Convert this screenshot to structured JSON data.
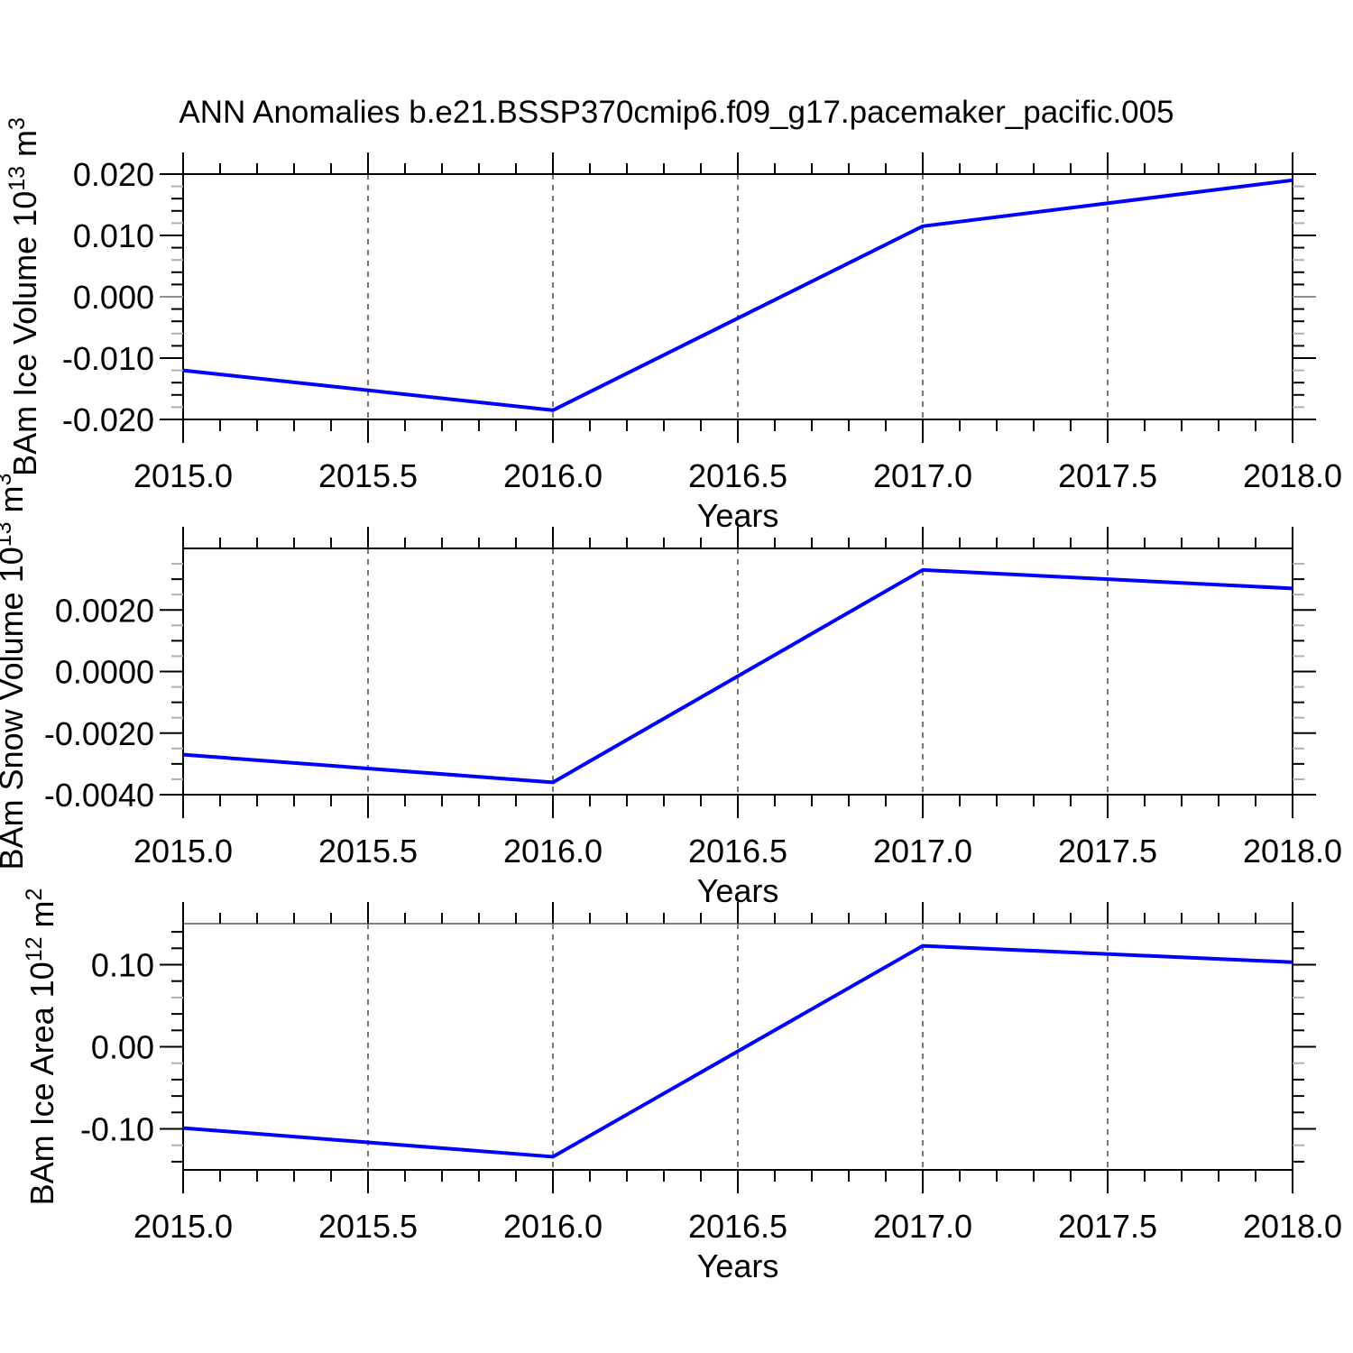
{
  "page": {
    "title": "ANN Anomalies b.e21.BSSP370cmip6.f09_g17.pacemaker_pacific.005"
  },
  "style": {
    "background": "#ffffff",
    "axis_color": "#000000",
    "text_color": "#000000",
    "line_color": "#0000ff",
    "grid_color": "#777777",
    "gray_tick_color": "#b0b0b0",
    "gray_major_tick_color": "#909090",
    "panel3_top_border_color": "#808080"
  },
  "chart_data": [
    {
      "type": "line",
      "id": "ice-volume",
      "series_name": "BAm Ice Volume anomaly",
      "xlabel": "Years",
      "ylabel_text": "BAm Ice Volume 10^13 m^3",
      "ylabel_segments": [
        {
          "t": "BAm Ice Volume 10"
        },
        {
          "t": "13",
          "sup": true
        },
        {
          "t": " m"
        },
        {
          "t": "3",
          "sup": true
        }
      ],
      "x": [
        2015,
        2016,
        2017,
        2018
      ],
      "values": [
        -0.012,
        -0.0185,
        0.0115,
        0.019
      ],
      "xlim": [
        2015.0,
        2018.0
      ],
      "ylim": [
        -0.02,
        0.02
      ],
      "xticks": {
        "values": [
          2015.0,
          2015.5,
          2016.0,
          2016.5,
          2017.0,
          2017.5,
          2018.0
        ],
        "labels": [
          "2015.0",
          "2015.5",
          "2016.0",
          "2016.5",
          "2017.0",
          "2017.5",
          "2018.0"
        ],
        "minor_step": 0.1
      },
      "yticks": {
        "values": [
          0.02,
          0.01,
          0.0,
          -0.01,
          -0.02
        ],
        "labels": [
          "0.020",
          "0.010",
          "0.000",
          "-0.010",
          "-0.020"
        ],
        "minor_step": 0.002,
        "gray_minor": [
          0.018,
          0.012,
          0.006,
          -0.006,
          -0.012,
          -0.018
        ],
        "gray_major": [
          0.0
        ]
      },
      "grid": "vertical-dashed",
      "gridlines_x": [
        2015.5,
        2016.0,
        2016.5,
        2017.0,
        2017.5
      ]
    },
    {
      "type": "line",
      "id": "snow-volume",
      "series_name": "BAm Snow Volume anomaly",
      "xlabel": "Years",
      "ylabel_text": "BAm Snow Volume 10^13 m^3",
      "ylabel_segments": [
        {
          "t": "BAm Snow Volume 10"
        },
        {
          "t": "13",
          "sup": true
        },
        {
          "t": " m"
        },
        {
          "t": "3",
          "sup": true
        }
      ],
      "x": [
        2015,
        2016,
        2017,
        2018
      ],
      "values": [
        -0.0027,
        -0.0036,
        0.0033,
        0.0027
      ],
      "xlim": [
        2015.0,
        2018.0
      ],
      "ylim": [
        -0.004,
        0.004
      ],
      "xticks": {
        "values": [
          2015.0,
          2015.5,
          2016.0,
          2016.5,
          2017.0,
          2017.5,
          2018.0
        ],
        "labels": [
          "2015.0",
          "2015.5",
          "2016.0",
          "2016.5",
          "2017.0",
          "2017.5",
          "2018.0"
        ],
        "minor_step": 0.1
      },
      "yticks": {
        "values": [
          0.002,
          0.0,
          -0.002,
          -0.004
        ],
        "labels": [
          "0.0020",
          "0.0000",
          "-0.0020",
          "-0.0040"
        ],
        "minor_step": 0.0005,
        "gray_minor": [
          0.0035,
          0.0025,
          0.0015,
          0.0005,
          -0.0005,
          -0.0015,
          -0.0025,
          -0.0035
        ],
        "gray_major": []
      },
      "grid": "vertical-dashed",
      "gridlines_x": [
        2015.5,
        2016.0,
        2016.5,
        2017.0,
        2017.5
      ]
    },
    {
      "type": "line",
      "id": "ice-area",
      "series_name": "BAm Ice Area anomaly",
      "xlabel": "Years",
      "ylabel_text": "BAm Ice Area 10^12 m^2",
      "ylabel_segments": [
        {
          "t": "BAm Ice Area 10"
        },
        {
          "t": "12",
          "sup": true
        },
        {
          "t": " m"
        },
        {
          "t": "2",
          "sup": true
        }
      ],
      "x": [
        2015,
        2016,
        2017,
        2018
      ],
      "values": [
        -0.099,
        -0.134,
        0.123,
        0.103
      ],
      "xlim": [
        2015.0,
        2018.0
      ],
      "ylim": [
        -0.15,
        0.15
      ],
      "top_border_color": "#808080",
      "xticks": {
        "values": [
          2015.0,
          2015.5,
          2016.0,
          2016.5,
          2017.0,
          2017.5,
          2018.0
        ],
        "labels": [
          "2015.0",
          "2015.5",
          "2016.0",
          "2016.5",
          "2017.0",
          "2017.5",
          "2018.0"
        ],
        "minor_step": 0.1
      },
      "yticks": {
        "values": [
          0.1,
          0.0,
          -0.1
        ],
        "labels": [
          "0.10",
          "0.00",
          "-0.10"
        ],
        "minor_step": 0.02,
        "gray_minor": [
          0.06,
          -0.02,
          -0.12
        ],
        "gray_major": []
      },
      "grid": "vertical-dashed",
      "gridlines_x": [
        2015.5,
        2016.0,
        2016.5,
        2017.0,
        2017.5
      ]
    }
  ]
}
